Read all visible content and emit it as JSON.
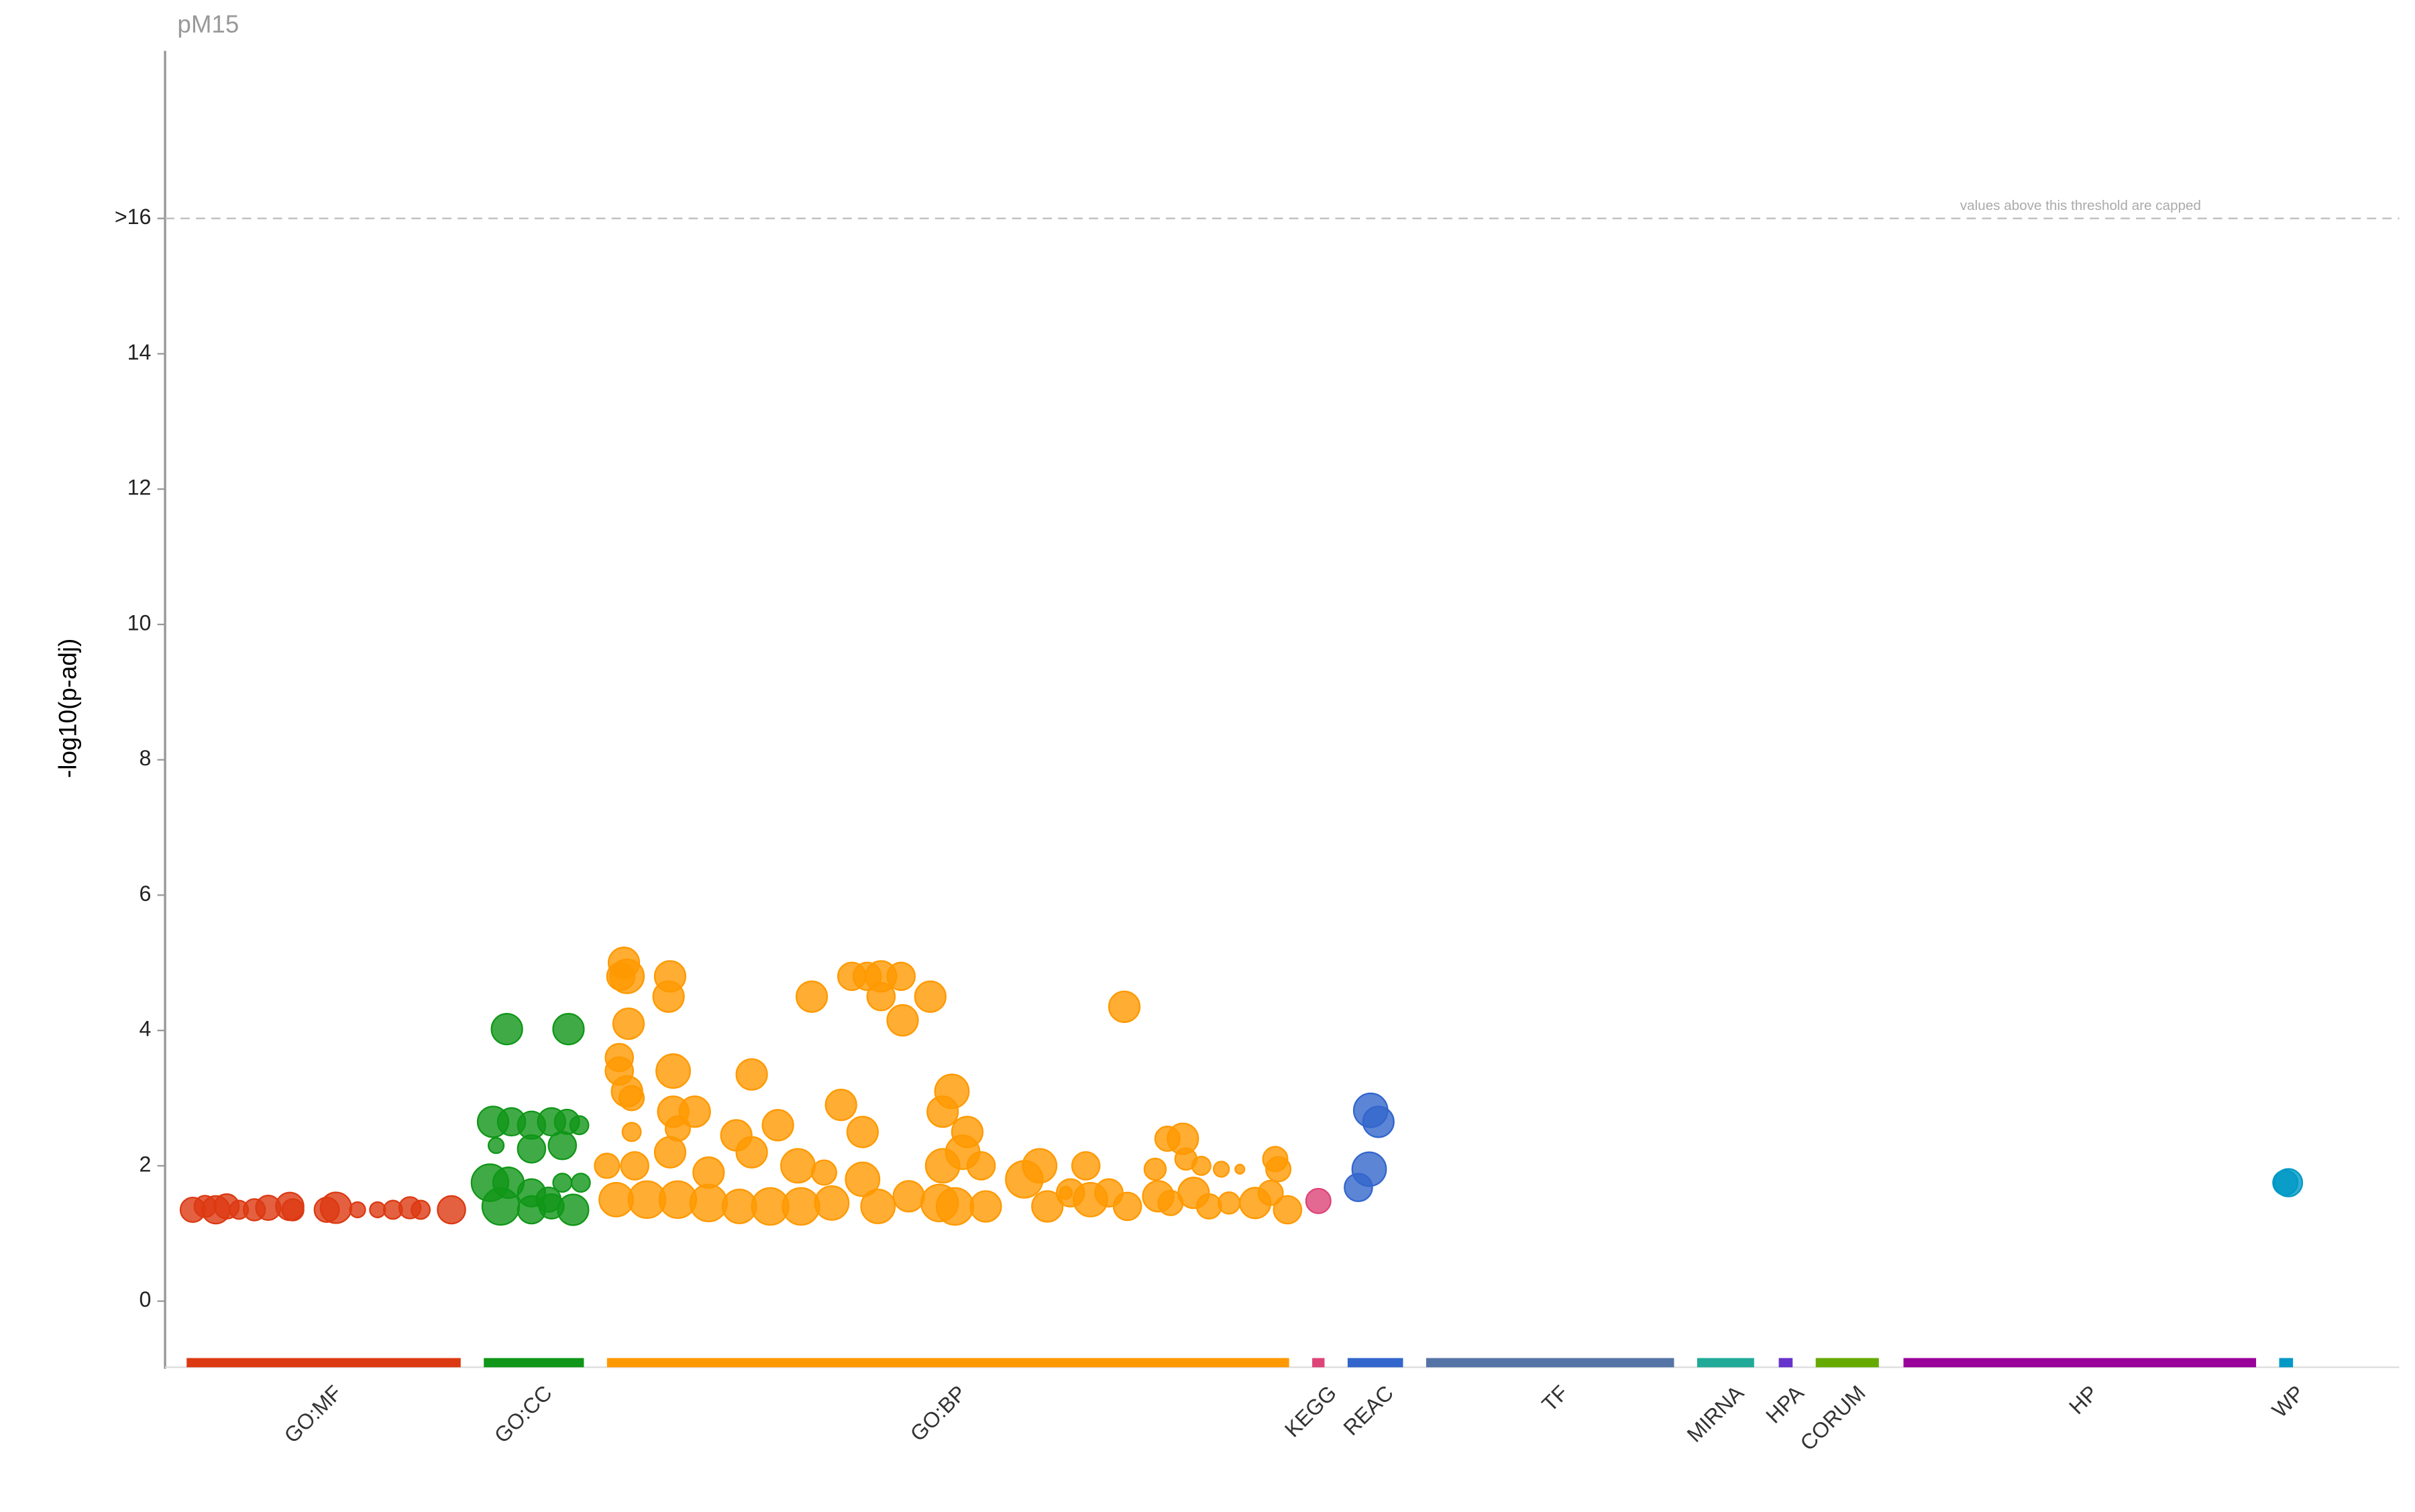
{
  "chart_data": {
    "type": "scatter",
    "title": "pM15",
    "y_label": "-log10(p-adj)",
    "annotation": "values above this threshold are capped",
    "xlim": [
      107,
      1558
    ],
    "ylim": [
      -1,
      18.5
    ],
    "yticks": [
      0,
      2,
      4,
      6,
      8,
      10,
      12,
      14,
      {
        "value": 16,
        "label": ">16"
      }
    ],
    "series": [
      {
        "name": "GO:MF",
        "color": "#dc3912",
        "range": [
          121,
          299
        ],
        "x": [
          125,
          133,
          140,
          147,
          155,
          165,
          174,
          188,
          190,
          212,
          218,
          232,
          245,
          255,
          266,
          273,
          293
        ],
        "values": [
          1.35,
          1.4,
          1.35,
          1.4,
          1.35,
          1.35,
          1.38,
          1.4,
          1.35,
          1.35,
          1.38,
          1.35,
          1.35,
          1.35,
          1.38,
          1.35,
          1.35
        ],
        "sizes": [
          8,
          7,
          9,
          8,
          6,
          7,
          8,
          9,
          7,
          8,
          10,
          5,
          5,
          6,
          7,
          6,
          9
        ]
      },
      {
        "name": "GO:CC",
        "color": "#109618",
        "range": [
          314,
          379
        ],
        "x": [
          329,
          369,
          320,
          332,
          345,
          358,
          368,
          376,
          322,
          345,
          365,
          318,
          330,
          345,
          356,
          365,
          377,
          325,
          345,
          358,
          372
        ],
        "values": [
          4.02,
          4.02,
          2.65,
          2.65,
          2.6,
          2.65,
          2.65,
          2.6,
          2.3,
          2.25,
          2.3,
          1.75,
          1.75,
          1.6,
          1.5,
          1.75,
          1.75,
          1.4,
          1.35,
          1.4,
          1.35
        ],
        "sizes": [
          10,
          10,
          10,
          9,
          9,
          9,
          8,
          6,
          5,
          9,
          9,
          12,
          10,
          9,
          8,
          6,
          6,
          12,
          9,
          8,
          10
        ]
      },
      {
        "name": "GO:BP",
        "color": "#ff9900",
        "range": [
          394,
          837
        ],
        "x": [
          405,
          407,
          403,
          408,
          435,
          434,
          402,
          402,
          437,
          407,
          410,
          437,
          451,
          440,
          410,
          488,
          527,
          553,
          563,
          572,
          585,
          572,
          604,
          586,
          618,
          612,
          546,
          505,
          560,
          628,
          730,
          478,
          394,
          412,
          435,
          460,
          488,
          518,
          535,
          612,
          625,
          637,
          675,
          705,
          750,
          758,
          768,
          770,
          780,
          793,
          805,
          828,
          830,
          400,
          420,
          440,
          460,
          480,
          500,
          520,
          540,
          560,
          570,
          590,
          610,
          620,
          640,
          665,
          680,
          695,
          708,
          720,
          732,
          752,
          760,
          775,
          785,
          798,
          815,
          825,
          836,
          692
        ],
        "values": [
          5.0,
          4.8,
          4.8,
          4.1,
          4.8,
          4.5,
          3.6,
          3.4,
          3.4,
          3.1,
          3.0,
          2.8,
          2.8,
          2.55,
          2.5,
          3.35,
          4.5,
          4.8,
          4.8,
          4.8,
          4.8,
          4.5,
          4.5,
          4.15,
          3.1,
          2.8,
          2.9,
          2.6,
          2.5,
          2.5,
          4.35,
          2.45,
          2.0,
          2.0,
          2.2,
          1.9,
          2.2,
          2.0,
          1.9,
          2.0,
          2.2,
          2.0,
          2.0,
          2.0,
          1.95,
          2.4,
          2.4,
          2.1,
          2.0,
          1.95,
          1.95,
          2.1,
          1.95,
          1.5,
          1.5,
          1.5,
          1.45,
          1.4,
          1.4,
          1.4,
          1.45,
          1.8,
          1.4,
          1.55,
          1.45,
          1.4,
          1.4,
          1.8,
          1.4,
          1.6,
          1.5,
          1.6,
          1.4,
          1.55,
          1.45,
          1.6,
          1.4,
          1.45,
          1.45,
          1.6,
          1.35,
          1.6
        ],
        "sizes": [
          10,
          11,
          9,
          10,
          10,
          10,
          9,
          9,
          11,
          10,
          8,
          10,
          10,
          8,
          6,
          10,
          10,
          9,
          9,
          10,
          9,
          9,
          10,
          10,
          11,
          10,
          10,
          10,
          10,
          10,
          10,
          10,
          8,
          9,
          10,
          10,
          10,
          11,
          8,
          11,
          11,
          9,
          11,
          9,
          7,
          8,
          10,
          7,
          6,
          5,
          3,
          8,
          8,
          11,
          12,
          12,
          12,
          11,
          12,
          12,
          11,
          11,
          11,
          10,
          12,
          12,
          10,
          12,
          10,
          9,
          11,
          9,
          9,
          10,
          8,
          10,
          8,
          7,
          10,
          8,
          9,
          4
        ]
      },
      {
        "name": "KEGG",
        "color": "#dd4477",
        "range": [
          852,
          860
        ],
        "x": [
          856
        ],
        "values": [
          1.48
        ],
        "sizes": [
          8
        ]
      },
      {
        "name": "REAC",
        "color": "#3366cc",
        "range": [
          875,
          911
        ],
        "x": [
          890,
          895,
          889,
          882
        ],
        "values": [
          2.82,
          2.65,
          1.95,
          1.68
        ],
        "sizes": [
          11,
          10,
          11,
          9
        ]
      },
      {
        "name": "TF",
        "color": "#5574a6",
        "range": [
          926,
          1087
        ],
        "x": [],
        "values": [],
        "sizes": []
      },
      {
        "name": "MIRNA",
        "color": "#22aa99",
        "range": [
          1102,
          1139
        ],
        "x": [],
        "values": [],
        "sizes": []
      },
      {
        "name": "HPA",
        "color": "#6633cc",
        "range": [
          1155,
          1164
        ],
        "x": [],
        "values": [],
        "sizes": []
      },
      {
        "name": "CORUM",
        "color": "#66aa00",
        "range": [
          1179,
          1220
        ],
        "x": [],
        "values": [],
        "sizes": []
      },
      {
        "name": "HP",
        "color": "#990099",
        "range": [
          1236,
          1465
        ],
        "x": [],
        "values": [],
        "sizes": []
      },
      {
        "name": "WP",
        "color": "#0099c6",
        "range": [
          1480,
          1489
        ],
        "x": [
          1486,
          1484
        ],
        "values": [
          1.75,
          1.75
        ],
        "sizes": [
          9,
          8
        ]
      }
    ]
  }
}
